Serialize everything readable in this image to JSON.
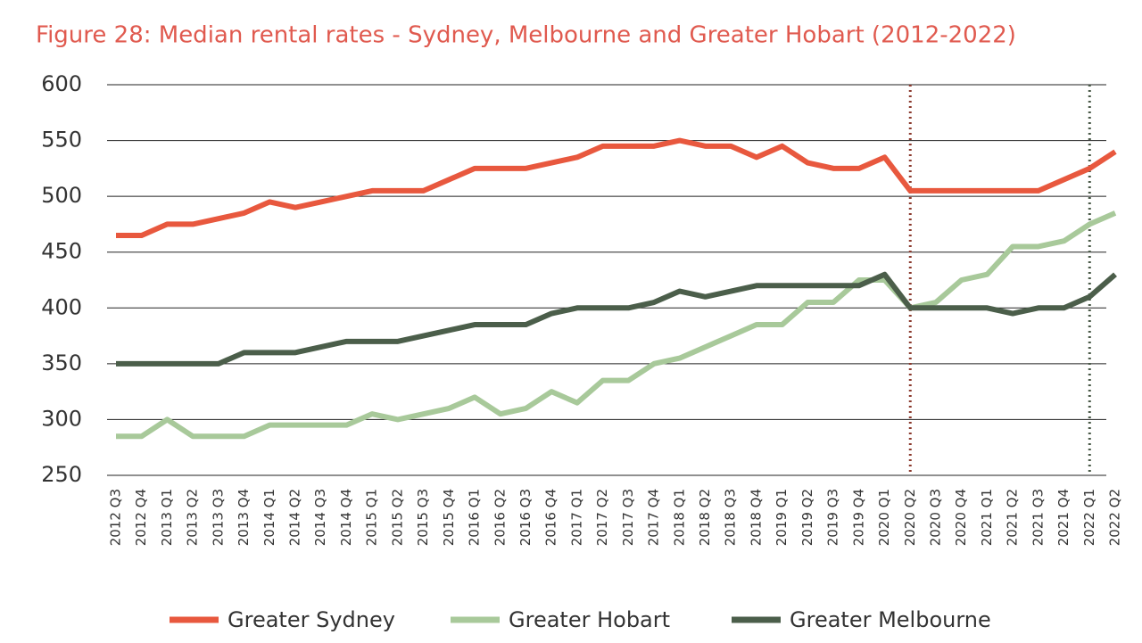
{
  "chart_data": {
    "type": "line",
    "title": "Figure 28: Median rental rates - Sydney, Melbourne and Greater Hobart (2012-2022)",
    "categories": [
      "2012 Q3",
      "2012 Q4",
      "2013 Q1",
      "2013 Q2",
      "2013 Q3",
      "2013 Q4",
      "2014 Q1",
      "2014 Q2",
      "2014 Q3",
      "2014 Q4",
      "2015 Q1",
      "2015 Q2",
      "2015 Q3",
      "2015 Q4",
      "2016 Q1",
      "2016 Q2",
      "2016 Q3",
      "2016 Q4",
      "2017 Q1",
      "2017 Q2",
      "2017 Q3",
      "2017 Q4",
      "2018 Q1",
      "2018 Q2",
      "2018 Q3",
      "2018 Q4",
      "2019 Q1",
      "2019 Q2",
      "2019 Q3",
      "2019 Q4",
      "2020 Q1",
      "2020 Q2",
      "2020 Q3",
      "2020 Q4",
      "2021 Q1",
      "2021 Q2",
      "2021 Q3",
      "2021 Q4",
      "2022 Q1",
      "2022 Q2"
    ],
    "series": [
      {
        "name": "Greater Sydney",
        "color": "#e8583e",
        "values": [
          465,
          465,
          475,
          475,
          480,
          485,
          495,
          490,
          495,
          500,
          505,
          505,
          505,
          515,
          525,
          525,
          525,
          530,
          535,
          545,
          545,
          545,
          550,
          545,
          545,
          535,
          545,
          530,
          525,
          525,
          535,
          505,
          505,
          505,
          505,
          505,
          505,
          515,
          525,
          540
        ]
      },
      {
        "name": "Greater Hobart",
        "color": "#a8c99a",
        "values": [
          285,
          285,
          300,
          285,
          285,
          285,
          295,
          295,
          295,
          295,
          305,
          300,
          305,
          310,
          320,
          305,
          310,
          325,
          315,
          335,
          335,
          350,
          355,
          365,
          375,
          385,
          385,
          405,
          405,
          425,
          425,
          400,
          405,
          425,
          430,
          455,
          455,
          460,
          475,
          485
        ]
      },
      {
        "name": "Greater Melbourne",
        "color": "#4b5e4a",
        "values": [
          350,
          350,
          350,
          350,
          350,
          360,
          360,
          360,
          365,
          370,
          370,
          370,
          375,
          380,
          385,
          385,
          385,
          395,
          400,
          400,
          400,
          405,
          415,
          410,
          415,
          420,
          420,
          420,
          420,
          420,
          430,
          400,
          400,
          400,
          400,
          395,
          400,
          400,
          410,
          430
        ]
      }
    ],
    "ylim": [
      250,
      600
    ],
    "yticks": [
      250,
      300,
      350,
      400,
      450,
      500,
      550,
      600
    ],
    "grid": true,
    "vlines": [
      {
        "category": "2020 Q2",
        "color": "#8b3a2e"
      },
      {
        "category": "2022 Q1",
        "color": "#4a5a48"
      }
    ],
    "legend": "bottom"
  }
}
